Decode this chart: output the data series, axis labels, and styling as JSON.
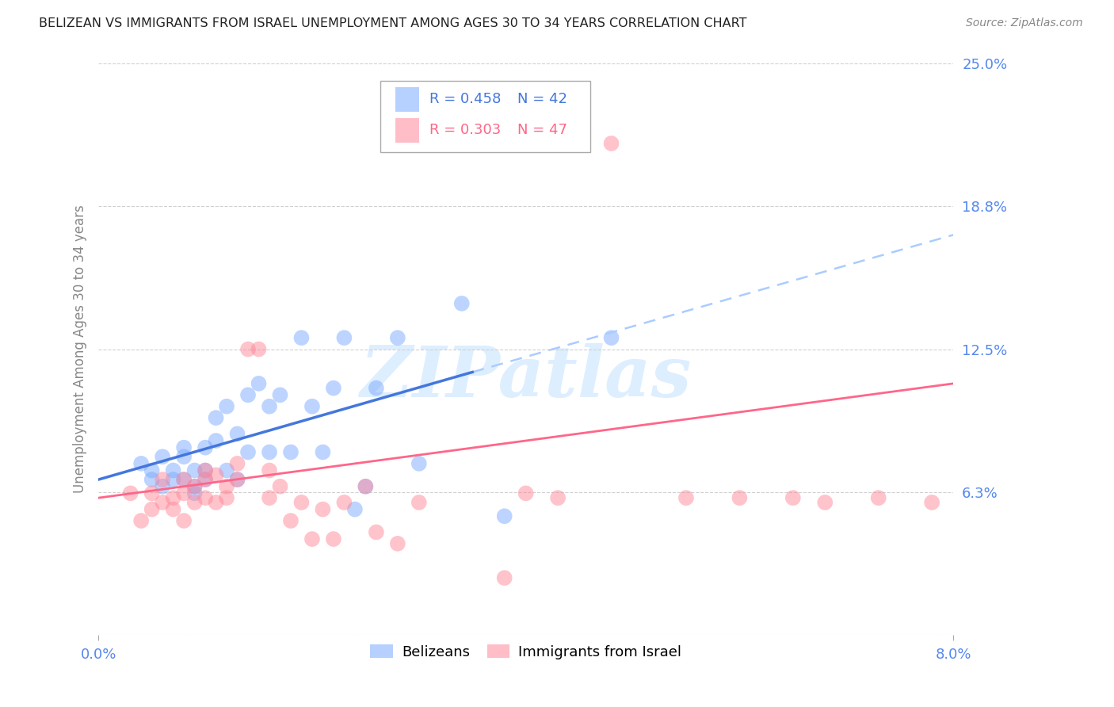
{
  "title": "BELIZEAN VS IMMIGRANTS FROM ISRAEL UNEMPLOYMENT AMONG AGES 30 TO 34 YEARS CORRELATION CHART",
  "source": "Source: ZipAtlas.com",
  "ylabel": "Unemployment Among Ages 30 to 34 years",
  "xmin": 0.0,
  "xmax": 0.08,
  "ymin": 0.0,
  "ymax": 0.25,
  "yticks": [
    0.0,
    0.0625,
    0.125,
    0.1875,
    0.25
  ],
  "ytick_labels": [
    "",
    "6.3%",
    "12.5%",
    "18.8%",
    "25.0%"
  ],
  "background_color": "#ffffff",
  "grid_color": "#d0d0d0",
  "watermark_text": "ZIPatlas",
  "legend_r1": "R = 0.458",
  "legend_n1": "N = 42",
  "legend_r2": "R = 0.303",
  "legend_n2": "N = 47",
  "blue_color": "#7aaaff",
  "pink_color": "#ff8899",
  "blue_line_color": "#4477dd",
  "pink_line_color": "#ff6688",
  "blue_dash_color": "#aaccff",
  "title_color": "#222222",
  "source_color": "#888888",
  "tick_label_color": "#5588ee",
  "ylabel_color": "#888888",
  "blue_scatter": [
    [
      0.004,
      0.075
    ],
    [
      0.005,
      0.072
    ],
    [
      0.005,
      0.068
    ],
    [
      0.006,
      0.078
    ],
    [
      0.006,
      0.065
    ],
    [
      0.007,
      0.068
    ],
    [
      0.007,
      0.072
    ],
    [
      0.008,
      0.068
    ],
    [
      0.008,
      0.078
    ],
    [
      0.008,
      0.082
    ],
    [
      0.009,
      0.072
    ],
    [
      0.009,
      0.062
    ],
    [
      0.009,
      0.065
    ],
    [
      0.01,
      0.068
    ],
    [
      0.01,
      0.072
    ],
    [
      0.01,
      0.082
    ],
    [
      0.011,
      0.095
    ],
    [
      0.011,
      0.085
    ],
    [
      0.012,
      0.1
    ],
    [
      0.012,
      0.072
    ],
    [
      0.013,
      0.068
    ],
    [
      0.013,
      0.088
    ],
    [
      0.014,
      0.08
    ],
    [
      0.014,
      0.105
    ],
    [
      0.015,
      0.11
    ],
    [
      0.016,
      0.1
    ],
    [
      0.016,
      0.08
    ],
    [
      0.017,
      0.105
    ],
    [
      0.018,
      0.08
    ],
    [
      0.019,
      0.13
    ],
    [
      0.02,
      0.1
    ],
    [
      0.021,
      0.08
    ],
    [
      0.022,
      0.108
    ],
    [
      0.023,
      0.13
    ],
    [
      0.024,
      0.055
    ],
    [
      0.025,
      0.065
    ],
    [
      0.026,
      0.108
    ],
    [
      0.028,
      0.13
    ],
    [
      0.03,
      0.075
    ],
    [
      0.034,
      0.145
    ],
    [
      0.038,
      0.052
    ],
    [
      0.048,
      0.13
    ]
  ],
  "pink_scatter": [
    [
      0.003,
      0.062
    ],
    [
      0.004,
      0.05
    ],
    [
      0.005,
      0.055
    ],
    [
      0.005,
      0.062
    ],
    [
      0.006,
      0.058
    ],
    [
      0.006,
      0.068
    ],
    [
      0.007,
      0.055
    ],
    [
      0.007,
      0.06
    ],
    [
      0.008,
      0.05
    ],
    [
      0.008,
      0.062
    ],
    [
      0.008,
      0.068
    ],
    [
      0.009,
      0.058
    ],
    [
      0.009,
      0.065
    ],
    [
      0.01,
      0.06
    ],
    [
      0.01,
      0.068
    ],
    [
      0.01,
      0.072
    ],
    [
      0.011,
      0.058
    ],
    [
      0.011,
      0.07
    ],
    [
      0.012,
      0.065
    ],
    [
      0.012,
      0.06
    ],
    [
      0.013,
      0.075
    ],
    [
      0.013,
      0.068
    ],
    [
      0.014,
      0.125
    ],
    [
      0.015,
      0.125
    ],
    [
      0.016,
      0.072
    ],
    [
      0.016,
      0.06
    ],
    [
      0.017,
      0.065
    ],
    [
      0.018,
      0.05
    ],
    [
      0.019,
      0.058
    ],
    [
      0.02,
      0.042
    ],
    [
      0.021,
      0.055
    ],
    [
      0.022,
      0.042
    ],
    [
      0.023,
      0.058
    ],
    [
      0.025,
      0.065
    ],
    [
      0.026,
      0.045
    ],
    [
      0.028,
      0.04
    ],
    [
      0.03,
      0.058
    ],
    [
      0.038,
      0.025
    ],
    [
      0.04,
      0.062
    ],
    [
      0.043,
      0.06
    ],
    [
      0.048,
      0.215
    ],
    [
      0.055,
      0.06
    ],
    [
      0.06,
      0.06
    ],
    [
      0.065,
      0.06
    ],
    [
      0.068,
      0.058
    ],
    [
      0.073,
      0.06
    ],
    [
      0.078,
      0.058
    ]
  ],
  "blue_line": {
    "x0": 0.0,
    "y0": 0.068,
    "x1": 0.08,
    "y1": 0.175
  },
  "blue_dash_line": {
    "x0": 0.035,
    "y0": 0.115,
    "x1": 0.08,
    "y1": 0.175
  },
  "pink_line": {
    "x0": 0.0,
    "y0": 0.06,
    "x1": 0.08,
    "y1": 0.11
  }
}
